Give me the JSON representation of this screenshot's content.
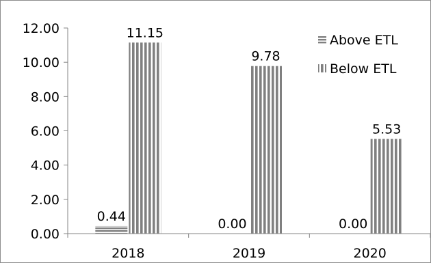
{
  "chart_data": {
    "type": "bar",
    "title": "",
    "xlabel": "",
    "ylabel": "",
    "categories": [
      "2018",
      "2019",
      "2020"
    ],
    "ylim": [
      0,
      12
    ],
    "yticks": [
      "0.00",
      "2.00",
      "4.00",
      "6.00",
      "8.00",
      "10.00",
      "12.00"
    ],
    "grid": false,
    "legend_position": "top-right",
    "series": [
      {
        "name": "Above ETL",
        "values": [
          0.44,
          0.0,
          0.0
        ],
        "labels": [
          "0.44",
          "0.00",
          "0.00"
        ],
        "pattern": "horizontal-stripes"
      },
      {
        "name": "Below ETL",
        "values": [
          11.15,
          9.78,
          5.53
        ],
        "labels": [
          "11.15",
          "9.78",
          "5.53"
        ],
        "pattern": "vertical-stripes"
      }
    ],
    "colors": {
      "stripe": "#808080",
      "axis": "#868686"
    }
  }
}
